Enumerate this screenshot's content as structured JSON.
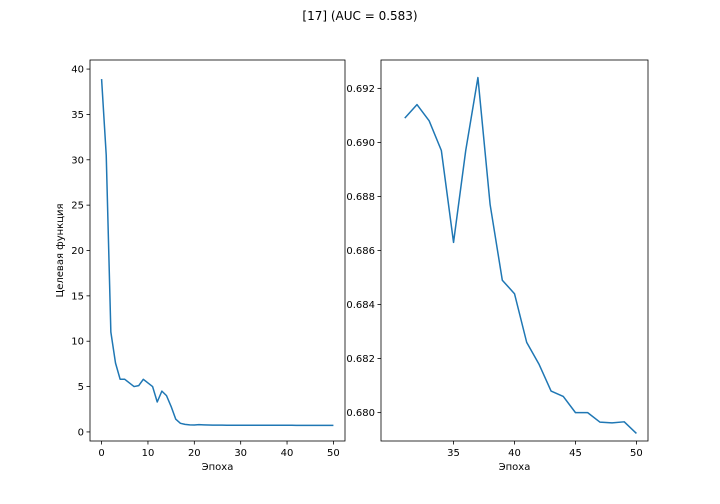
{
  "figure": {
    "title": "[17] (AUC = 0.583)"
  },
  "chart_data": [
    {
      "type": "line",
      "xlabel": "Эпоха",
      "ylabel": "Целевая функция",
      "xlim": [
        -2.5,
        52.5
      ],
      "ylim": [
        -1.0,
        41.0
      ],
      "xticks": [
        0,
        10,
        20,
        30,
        40,
        50
      ],
      "xtick_labels": [
        "0",
        "10",
        "20",
        "30",
        "40",
        "50"
      ],
      "yticks": [
        0,
        5,
        10,
        15,
        20,
        25,
        30,
        35,
        40
      ],
      "ytick_labels": [
        "0",
        "5",
        "10",
        "15",
        "20",
        "25",
        "30",
        "35",
        "40"
      ],
      "grid": false,
      "color": "#1f77b4",
      "series": [
        {
          "x": [
            0,
            1,
            2,
            3,
            4,
            5,
            6,
            7,
            8,
            9,
            10,
            11,
            12,
            13,
            14,
            15,
            16,
            17,
            18,
            19,
            20,
            21,
            22,
            23,
            24,
            25,
            26,
            27,
            28,
            29,
            30,
            31,
            32,
            33,
            34,
            35,
            36,
            37,
            38,
            39,
            40,
            41,
            42,
            43,
            44,
            45,
            46,
            47,
            48,
            49,
            50
          ],
          "values": [
            38.9,
            30.5,
            11.0,
            7.6,
            5.8,
            5.8,
            5.4,
            5.0,
            5.1,
            5.8,
            5.4,
            5.0,
            3.3,
            4.5,
            4.0,
            2.8,
            1.4,
            0.95,
            0.83,
            0.78,
            0.76,
            0.8,
            0.78,
            0.76,
            0.75,
            0.75,
            0.75,
            0.74,
            0.74,
            0.73,
            0.73,
            0.74,
            0.74,
            0.73,
            0.74,
            0.73,
            0.74,
            0.74,
            0.73,
            0.73,
            0.73,
            0.73,
            0.72,
            0.72,
            0.72,
            0.72,
            0.72,
            0.72,
            0.72,
            0.72,
            0.72
          ]
        }
      ]
    },
    {
      "type": "line",
      "xlabel": "Эпоха",
      "ylabel": "",
      "xlim": [
        29.05,
        50.95
      ],
      "ylim": [
        0.67895,
        0.69305
      ],
      "xticks": [
        35,
        40,
        45,
        50
      ],
      "xtick_labels": [
        "35",
        "40",
        "45",
        "50"
      ],
      "yticks": [
        0.68,
        0.682,
        0.684,
        0.686,
        0.688,
        0.69,
        0.692
      ],
      "ytick_labels": [
        "0.680",
        "0.682",
        "0.684",
        "0.686",
        "0.688",
        "0.690",
        "0.692"
      ],
      "grid": false,
      "color": "#1f77b4",
      "series": [
        {
          "x": [
            31,
            32,
            33,
            34,
            35,
            36,
            37,
            38,
            39,
            40,
            41,
            42,
            43,
            44,
            45,
            46,
            47,
            48,
            49,
            50
          ],
          "values": [
            0.6909,
            0.6914,
            0.6908,
            0.6897,
            0.6863,
            0.6897,
            0.6924,
            0.6877,
            0.6849,
            0.6844,
            0.6826,
            0.6818,
            0.6808,
            0.6806,
            0.68,
            0.68,
            0.67965,
            0.67962,
            0.67966,
            0.67923
          ]
        }
      ]
    }
  ]
}
